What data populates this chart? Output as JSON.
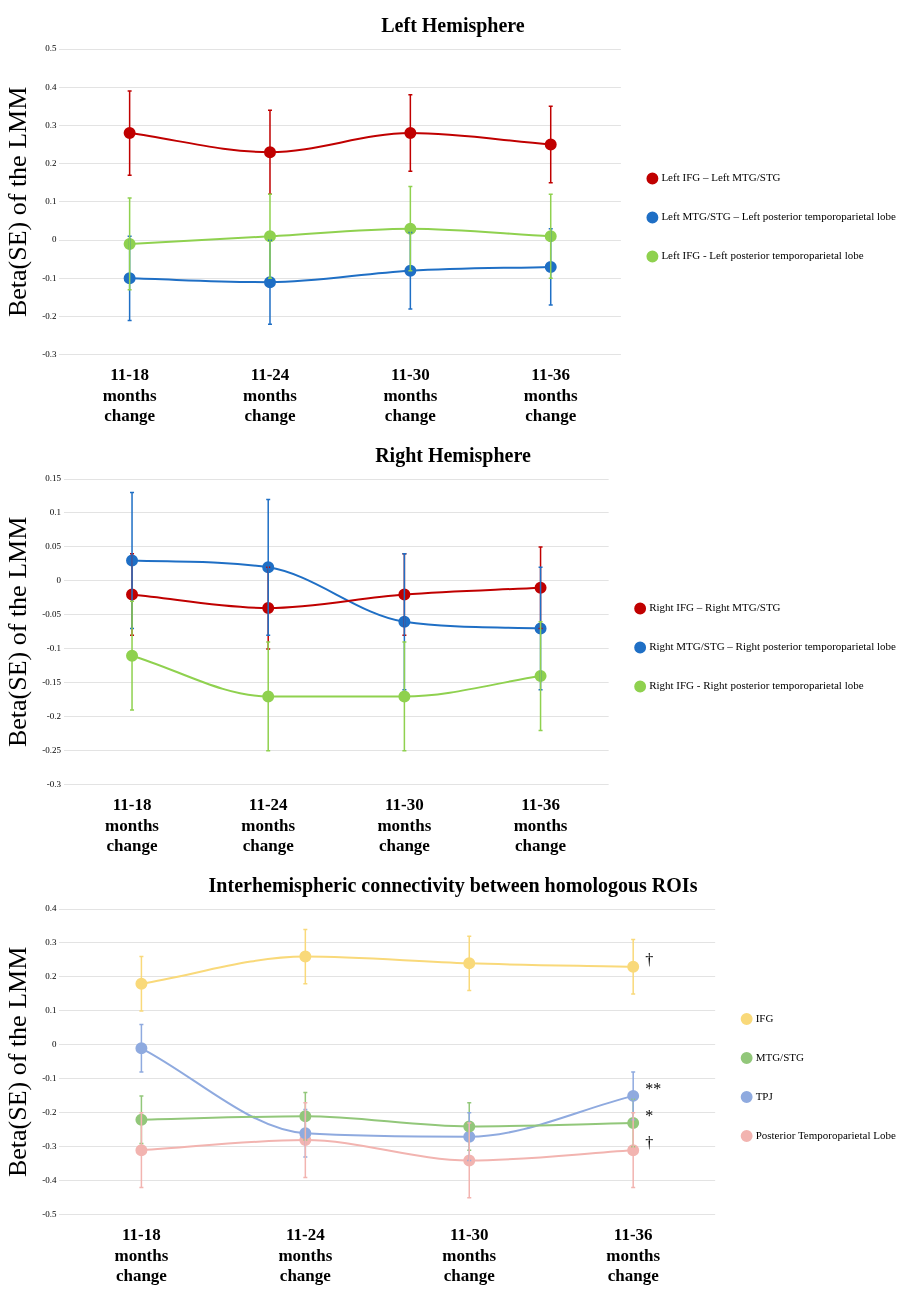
{
  "chart_data": [
    {
      "type": "line",
      "title": "Left Hemisphere",
      "ylabel": "Beta(SE) of the LMM",
      "categories": [
        "11-18 months change",
        "11-24 months change",
        "11-30 months change",
        "11-36 months change"
      ],
      "ylim": [
        -0.3,
        0.5
      ],
      "yticks": [
        -0.3,
        -0.2,
        -0.1,
        0,
        0.1,
        0.2,
        0.3,
        0.4,
        0.5
      ],
      "grid": "y",
      "legend": "right",
      "marker": "circle",
      "line_style": "solid",
      "series": [
        {
          "name": "Left IFG – Left MTG/STG",
          "color": "#c00000",
          "values": [
            0.28,
            0.23,
            0.28,
            0.25
          ],
          "errors": [
            0.11,
            0.11,
            0.1,
            0.1
          ]
        },
        {
          "name": "Left MTG/STG – Left posterior temporoparietal lobe",
          "color": "#1f6fc5",
          "values": [
            -0.1,
            -0.11,
            -0.08,
            -0.07
          ],
          "errors": [
            0.11,
            0.11,
            0.1,
            0.1
          ]
        },
        {
          "name": "Left IFG - Left posterior temporoparietal lobe",
          "color": "#8fd14f",
          "values": [
            -0.01,
            0.01,
            0.03,
            0.01
          ],
          "errors": [
            0.12,
            0.11,
            0.11,
            0.11
          ]
        }
      ]
    },
    {
      "type": "line",
      "title": "Right Hemisphere",
      "ylabel": "Beta(SE) of the LMM",
      "categories": [
        "11-18 months change",
        "11-24 months change",
        "11-30 months change",
        "11-36 months change"
      ],
      "ylim": [
        -0.3,
        0.15
      ],
      "yticks": [
        -0.3,
        -0.25,
        -0.2,
        -0.15,
        -0.1,
        -0.05,
        0,
        0.05,
        0.1,
        0.15
      ],
      "grid": "y",
      "legend": "right",
      "marker": "circle",
      "line_style": "solid",
      "series": [
        {
          "name": "Right IFG – Right MTG/STG",
          "color": "#c00000",
          "values": [
            -0.02,
            -0.04,
            -0.02,
            -0.01
          ],
          "errors": [
            0.06,
            0.06,
            0.06,
            0.06
          ]
        },
        {
          "name": "Right MTG/STG – Right posterior temporoparietal lobe",
          "color": "#1f6fc5",
          "values": [
            0.03,
            0.02,
            -0.06,
            -0.07
          ],
          "errors": [
            0.1,
            0.1,
            0.1,
            0.09
          ]
        },
        {
          "name": "Right IFG - Right posterior temporoparietal lobe",
          "color": "#8fd14f",
          "values": [
            -0.11,
            -0.17,
            -0.17,
            -0.14
          ],
          "errors": [
            0.08,
            0.08,
            0.08,
            0.08
          ]
        }
      ]
    },
    {
      "type": "line",
      "title": "Interhemispheric connectivity between homologous ROIs",
      "ylabel": "Beta(SE) of the LMM",
      "categories": [
        "11-18 months change",
        "11-24 months change",
        "11-30 months change",
        "11-36 months change"
      ],
      "ylim": [
        -0.5,
        0.4
      ],
      "yticks": [
        -0.5,
        -0.4,
        -0.3,
        -0.2,
        -0.1,
        0,
        0.1,
        0.2,
        0.3,
        0.4
      ],
      "grid": "y",
      "legend": "right",
      "marker": "circle",
      "line_style": "solid",
      "series": [
        {
          "name": "IFG",
          "color": "#f9d97a",
          "values": [
            0.18,
            0.26,
            0.24,
            0.23
          ],
          "errors": [
            0.08,
            0.08,
            0.08,
            0.08
          ]
        },
        {
          "name": "MTG/STG",
          "color": "#92c77a",
          "values": [
            -0.22,
            -0.21,
            -0.24,
            -0.23
          ],
          "errors": [
            0.07,
            0.07,
            0.07,
            0.07
          ]
        },
        {
          "name": "TPJ",
          "color": "#8faadf",
          "values": [
            -0.01,
            -0.26,
            -0.27,
            -0.15
          ],
          "errors": [
            0.07,
            0.07,
            0.07,
            0.07
          ]
        },
        {
          "name": "Posterior Temporoparietal Lobe",
          "color": "#f2b4b0",
          "values": [
            -0.31,
            -0.28,
            -0.34,
            -0.31
          ],
          "errors": [
            0.11,
            0.11,
            0.11,
            0.11
          ]
        }
      ],
      "annotations": [
        {
          "text": "†",
          "x": "11-36 months change",
          "y": 0.23
        },
        {
          "text": "**",
          "x": "11-36 months change",
          "y": -0.15
        },
        {
          "text": "*",
          "x": "11-36 months change",
          "y": -0.23
        },
        {
          "text": "†",
          "x": "11-36 months change",
          "y": -0.31
        }
      ]
    }
  ]
}
